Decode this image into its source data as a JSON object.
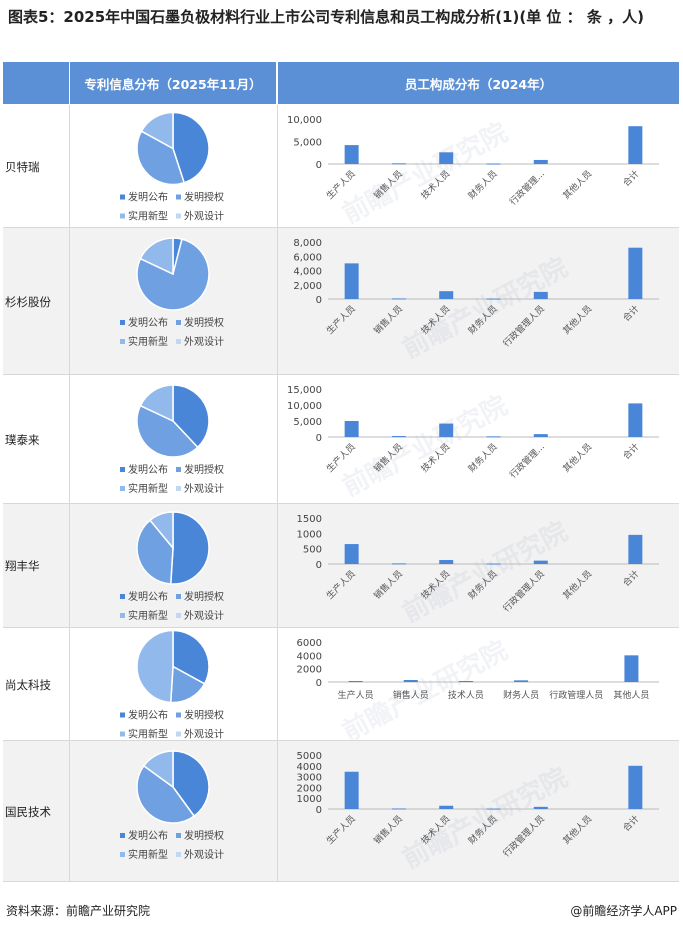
{
  "title": "图表5：2025年中国石墨负极材料行业上市公司专利信息和员工构成分析(1)(单 位 ： 条 ，人)",
  "headers": {
    "patent": "专利信息分布（2025年11月）",
    "staff": "员工构成分布（2024年）"
  },
  "legend_labels": [
    "发明公布",
    "发明授权",
    "实用新型",
    "外观设计"
  ],
  "colors": {
    "header": "#5b8fd6",
    "bar": "#4a86d8",
    "pie": [
      "#4a86d8",
      "#6fa0e2",
      "#92b9ec",
      "#c2d7f4"
    ]
  },
  "watermark": "前瞻产业研究院",
  "source": "资料来源：前瞻产业研究院",
  "brand": "@前瞻经济学人APP",
  "chart_data": [
    {
      "company": "贝特瑞",
      "pie": {
        "type": "pie",
        "labels": [
          "发明公布",
          "发明授权",
          "实用新型",
          "外观设计"
        ],
        "values": [
          45,
          38,
          17,
          0
        ]
      },
      "bar": {
        "type": "bar",
        "categories": [
          "生产人员",
          "销售人员",
          "技术人员",
          "财务人员",
          "行政管理...",
          "其他人员",
          "合计"
        ],
        "values": [
          4200,
          150,
          2600,
          100,
          900,
          0,
          8400
        ],
        "ylim": [
          0,
          10000
        ],
        "ticks": [
          "0",
          "5,000",
          "10,000"
        ]
      }
    },
    {
      "company": "杉杉股份",
      "pie": {
        "type": "pie",
        "labels": [
          "发明公布",
          "发明授权",
          "实用新型",
          "外观设计"
        ],
        "values": [
          4,
          78,
          18,
          0
        ]
      },
      "bar": {
        "type": "bar",
        "categories": [
          "生产人员",
          "销售人员",
          "技术人员",
          "财务人员",
          "行政管理人员",
          "其他人员",
          "合计"
        ],
        "values": [
          5000,
          80,
          1100,
          60,
          1000,
          0,
          7200
        ],
        "ylim": [
          0,
          8000
        ],
        "ticks": [
          "0",
          "2,000",
          "4,000",
          "6,000",
          "8,000"
        ]
      }
    },
    {
      "company": "璞泰来",
      "pie": {
        "type": "pie",
        "labels": [
          "发明公布",
          "发明授权",
          "实用新型",
          "外观设计"
        ],
        "values": [
          38,
          44,
          18,
          0
        ]
      },
      "bar": {
        "type": "bar",
        "categories": [
          "生产人员",
          "销售人员",
          "技术人员",
          "财务人员",
          "行政管理...",
          "其他人员",
          "合计"
        ],
        "values": [
          5000,
          300,
          4200,
          200,
          900,
          0,
          10500
        ],
        "ylim": [
          0,
          15000
        ],
        "ticks": [
          "0",
          "5,000",
          "10,000",
          "15,000"
        ]
      }
    },
    {
      "company": "翔丰华",
      "pie": {
        "type": "pie",
        "labels": [
          "发明公布",
          "发明授权",
          "实用新型",
          "外观设计"
        ],
        "values": [
          51,
          38,
          11,
          0
        ]
      },
      "bar": {
        "type": "bar",
        "categories": [
          "生产人员",
          "销售人员",
          "技术人员",
          "财务人员",
          "行政管理人员",
          "其他人员",
          "合计"
        ],
        "values": [
          650,
          20,
          130,
          15,
          110,
          0,
          950
        ],
        "ylim": [
          0,
          1500
        ],
        "ticks": [
          "0",
          "500",
          "1000",
          "1500"
        ]
      }
    },
    {
      "company": "尚太科技",
      "pie": {
        "type": "pie",
        "labels": [
          "发明公布",
          "发明授权",
          "实用新型",
          "外观设计"
        ],
        "values": [
          33,
          18,
          49,
          0
        ]
      },
      "bar": {
        "type": "bar",
        "categories": [
          "生产人员",
          "销售人员",
          "技术人员",
          "财务人员",
          "行政管理人员",
          "其他人员"
        ],
        "values": [
          150,
          300,
          150,
          250,
          0,
          4000
        ],
        "ylim": [
          0,
          6000
        ],
        "ticks": [
          "0",
          "2000",
          "4000",
          "6000"
        ]
      }
    },
    {
      "company": "国民技术",
      "pie": {
        "type": "pie",
        "labels": [
          "发明公布",
          "发明授权",
          "实用新型",
          "外观设计"
        ],
        "values": [
          40,
          45,
          15,
          0
        ]
      },
      "bar": {
        "type": "bar",
        "categories": [
          "生产人员",
          "销售人员",
          "技术人员",
          "财务人员",
          "行政管理人员",
          "其他人员",
          "合计"
        ],
        "values": [
          3450,
          50,
          300,
          40,
          200,
          0,
          4000
        ],
        "ylim": [
          0,
          5000
        ],
        "ticks": [
          "0",
          "1000",
          "2000",
          "3000",
          "4000",
          "5000"
        ]
      }
    }
  ]
}
